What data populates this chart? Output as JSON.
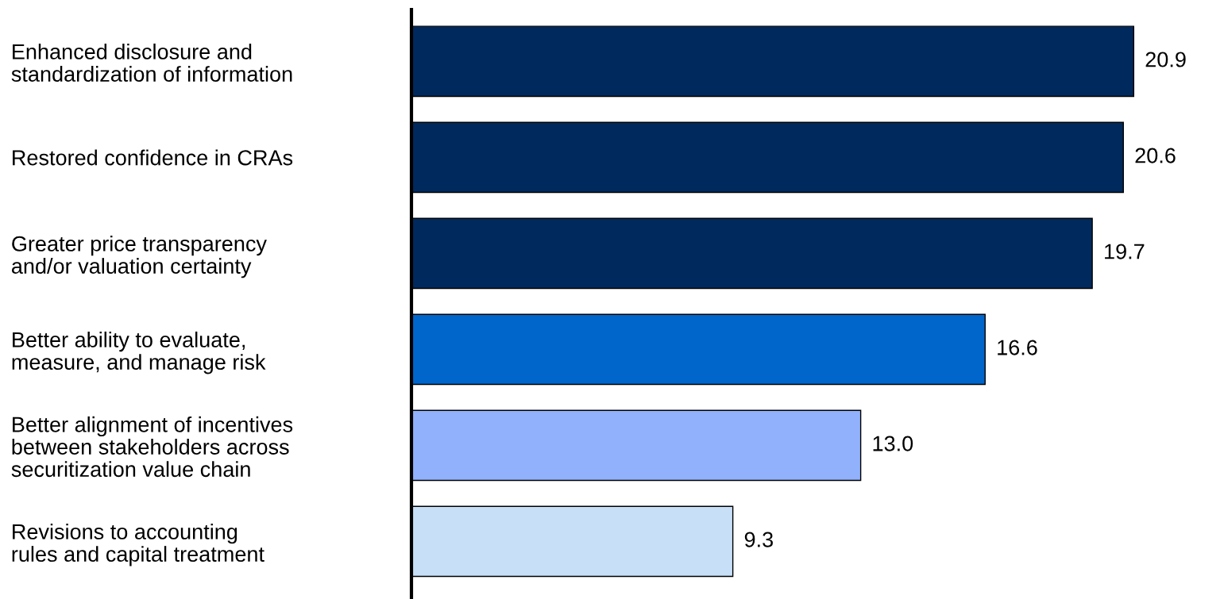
{
  "chart_data": {
    "type": "bar",
    "orientation": "horizontal",
    "categories": [
      "Enhanced disclosure and\nstandardization of information",
      "Restored confidence in CRAs",
      "Greater price transparency\nand/or valuation certainty",
      "Better ability to evaluate,\nmeasure, and manage risk",
      "Better alignment of incentives\nbetween stakeholders across\nsecuritization value chain",
      "Revisions to accounting\nrules and capital treatment"
    ],
    "values": [
      20.9,
      20.6,
      19.7,
      16.6,
      13.0,
      9.3
    ],
    "value_labels": [
      "20.9",
      "20.6",
      "19.7",
      "16.6",
      "13.0",
      "9.3"
    ],
    "colors": [
      "#002a5e",
      "#002a5e",
      "#002a5e",
      "#0066cc",
      "#92b1fd",
      "#c7e0f8"
    ],
    "tick_labels": "y",
    "grid": false
  }
}
